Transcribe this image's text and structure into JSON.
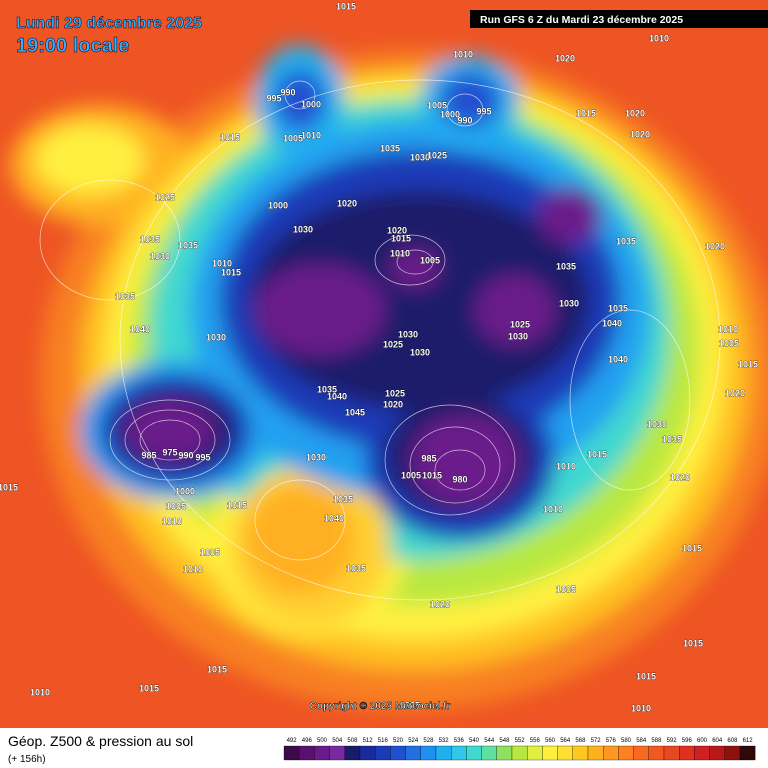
{
  "header": {
    "date": "Lundi 29 décembre 2025",
    "time": "19:00 locale",
    "run": "Run GFS 6 Z du Mardi 23 décembre 2025"
  },
  "copyright": "Copyright © 2025 Meteociel.fr",
  "footer": {
    "title": "Géop. Z500 & pression au sol",
    "lead": "(+ 156h)"
  },
  "colorbar": {
    "labels": [
      "492",
      "496",
      "500",
      "504",
      "508",
      "512",
      "516",
      "520",
      "524",
      "528",
      "532",
      "536",
      "540",
      "544",
      "548",
      "552",
      "556",
      "560",
      "564",
      "568",
      "572",
      "576",
      "580",
      "584",
      "588",
      "592",
      "596",
      "600",
      "604",
      "608",
      "612"
    ],
    "colors": [
      "#3a0a4a",
      "#5a1070",
      "#6a1a8a",
      "#7a2aa0",
      "#1a1a6a",
      "#1a2a9a",
      "#1a3ab8",
      "#2050d0",
      "#2070e0",
      "#2090f0",
      "#20b0f0",
      "#30c8e8",
      "#40d8d0",
      "#60e0a0",
      "#90e060",
      "#b8e840",
      "#e0f040",
      "#fff040",
      "#ffe030",
      "#ffc820",
      "#ffb020",
      "#ff9820",
      "#ff8020",
      "#f86a20",
      "#f05a20",
      "#e84820",
      "#e03020",
      "#d02020",
      "#b81818",
      "#901010",
      "#300808"
    ]
  },
  "pressure_labels": [
    "1015",
    "1010",
    "1020",
    "1010",
    "990",
    "995",
    "1000",
    "1005",
    "1000",
    "990",
    "995",
    "1015",
    "1020",
    "1020",
    "1015",
    "1010",
    "1005",
    "1035",
    "1030",
    "1025",
    "1025",
    "1000",
    "1020",
    "1030",
    "1020",
    "1015",
    "1035",
    "1035",
    "1030",
    "1010",
    "1005",
    "1010",
    "1015",
    "1035",
    "1020",
    "1035",
    "1035",
    "1030",
    "1035",
    "1040",
    "1025",
    "1030",
    "1040",
    "1030",
    "1030",
    "1025",
    "1030",
    "1040",
    "1010",
    "1005",
    "1015",
    "1035",
    "1040",
    "1025",
    "1020",
    "1045",
    "1020",
    "1030",
    "1035",
    "985",
    "975",
    "990",
    "995",
    "985",
    "1005",
    "1015",
    "980",
    "1010",
    "1015",
    "1030",
    "1020",
    "1015",
    "1000",
    "1015",
    "1005",
    "1010",
    "1035",
    "1040",
    "1010",
    "1015",
    "1005",
    "1010",
    "1035",
    "1005",
    "1020",
    "1015",
    "1015",
    "1015",
    "1010",
    "1015",
    "1010",
    "1005"
  ]
}
